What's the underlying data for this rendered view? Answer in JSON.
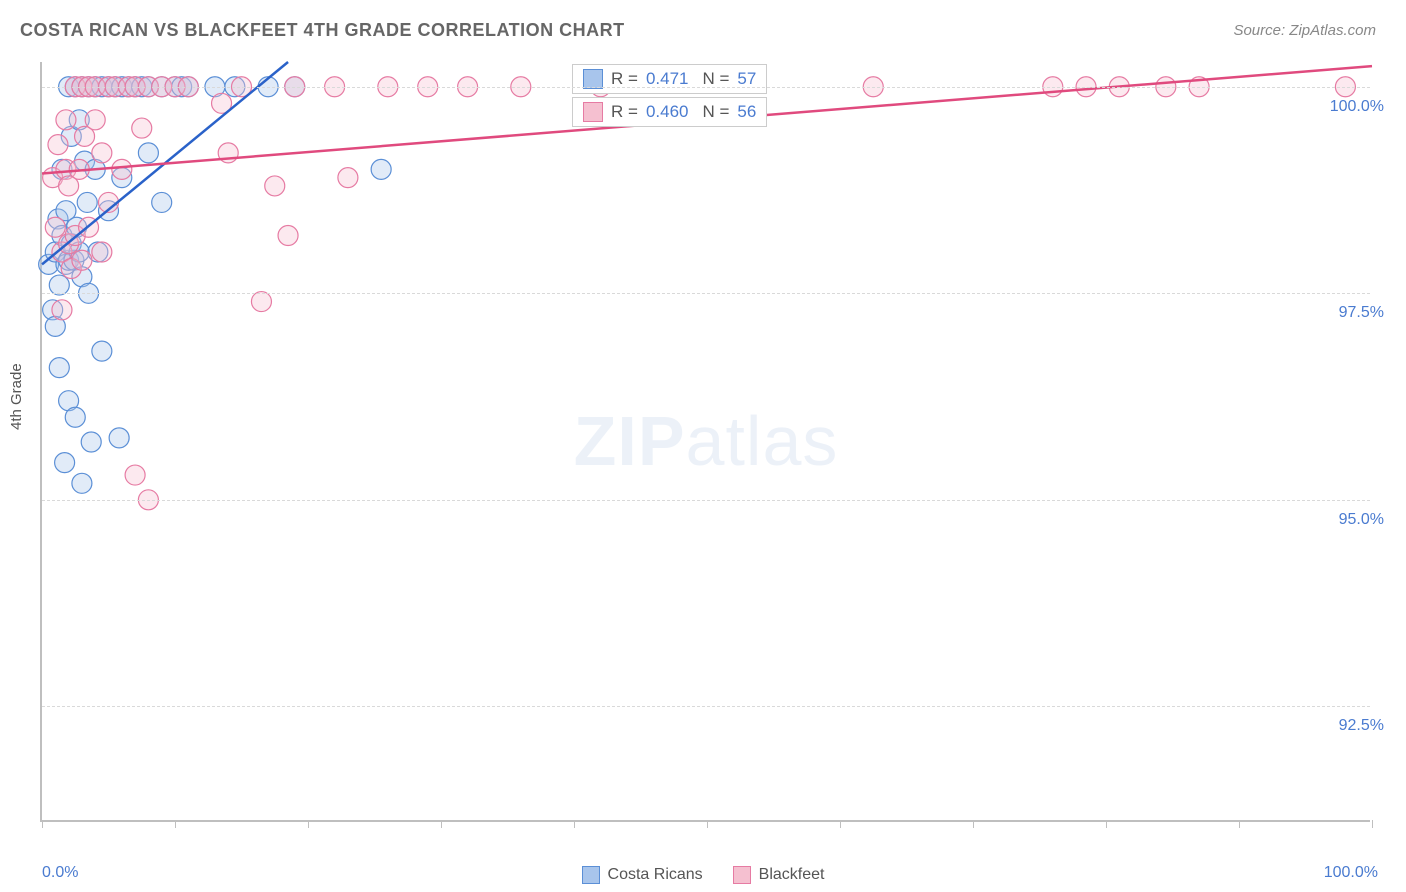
{
  "title": "COSTA RICAN VS BLACKFEET 4TH GRADE CORRELATION CHART",
  "source": "Source: ZipAtlas.com",
  "ylabel": "4th Grade",
  "watermark_zip": "ZIP",
  "watermark_atlas": "atlas",
  "chart": {
    "type": "scatter",
    "xlim": [
      0,
      100
    ],
    "ylim": [
      91.1,
      100.3
    ],
    "x_ticks": [
      0,
      10,
      20,
      30,
      40,
      50,
      60,
      70,
      80,
      90,
      100
    ],
    "x_tick_labels": {
      "0": "0.0%",
      "100": "100.0%"
    },
    "y_gridlines": [
      92.5,
      95.0,
      97.5,
      100.0
    ],
    "y_tick_labels": [
      "92.5%",
      "95.0%",
      "97.5%",
      "100.0%"
    ],
    "background_color": "#ffffff",
    "grid_color": "#d9d9d9",
    "axis_color": "#bfbfbf",
    "tick_label_color": "#4a7bd0",
    "marker_radius": 10,
    "marker_opacity": 0.35,
    "line_width": 2.5,
    "series": [
      {
        "name": "Costa Ricans",
        "fill_color": "#a8c5ec",
        "stroke_color": "#5b8fd6",
        "line_color": "#2a62c9",
        "R": "0.471",
        "N": "57",
        "trend": {
          "x1": 0,
          "y1": 97.85,
          "x2": 18.5,
          "y2": 100.3
        },
        "points": [
          [
            0.5,
            97.85
          ],
          [
            0.8,
            97.3
          ],
          [
            1.0,
            98.0
          ],
          [
            1.0,
            97.1
          ],
          [
            1.2,
            98.4
          ],
          [
            1.3,
            97.6
          ],
          [
            1.3,
            96.6
          ],
          [
            1.5,
            98.2
          ],
          [
            1.5,
            99.0
          ],
          [
            1.7,
            95.45
          ],
          [
            1.8,
            97.85
          ],
          [
            1.8,
            98.5
          ],
          [
            2.0,
            96.2
          ],
          [
            2.0,
            97.9
          ],
          [
            2.0,
            100.0
          ],
          [
            2.2,
            99.4
          ],
          [
            2.2,
            98.1
          ],
          [
            2.4,
            97.9
          ],
          [
            2.5,
            100.0
          ],
          [
            2.5,
            96.0
          ],
          [
            2.6,
            98.3
          ],
          [
            2.8,
            99.6
          ],
          [
            2.8,
            98.0
          ],
          [
            3.0,
            95.2
          ],
          [
            3.0,
            100.0
          ],
          [
            3.0,
            97.7
          ],
          [
            3.2,
            99.1
          ],
          [
            3.4,
            98.6
          ],
          [
            3.5,
            100.0
          ],
          [
            3.5,
            97.5
          ],
          [
            3.7,
            95.7
          ],
          [
            4.0,
            100.0
          ],
          [
            4.0,
            99.0
          ],
          [
            4.2,
            98.0
          ],
          [
            4.5,
            96.8
          ],
          [
            4.5,
            100.0
          ],
          [
            5.0,
            100.0
          ],
          [
            5.0,
            98.5
          ],
          [
            5.5,
            100.0
          ],
          [
            5.8,
            95.75
          ],
          [
            6.0,
            100.0
          ],
          [
            6.0,
            98.9
          ],
          [
            6.5,
            100.0
          ],
          [
            7.0,
            100.0
          ],
          [
            7.5,
            100.0
          ],
          [
            8.0,
            99.2
          ],
          [
            8.0,
            100.0
          ],
          [
            9.0,
            98.6
          ],
          [
            9.0,
            100.0
          ],
          [
            10.0,
            100.0
          ],
          [
            10.5,
            100.0
          ],
          [
            11.0,
            100.0
          ],
          [
            13.0,
            100.0
          ],
          [
            14.5,
            100.0
          ],
          [
            17.0,
            100.0
          ],
          [
            19.0,
            100.0
          ],
          [
            25.5,
            99.0
          ]
        ]
      },
      {
        "name": "Blackfeet",
        "fill_color": "#f5c0d0",
        "stroke_color": "#e67ba3",
        "line_color": "#e04a7e",
        "R": "0.460",
        "N": "56",
        "trend": {
          "x1": 0,
          "y1": 98.95,
          "x2": 100,
          "y2": 100.25
        },
        "points": [
          [
            0.8,
            98.9
          ],
          [
            1.0,
            98.3
          ],
          [
            1.2,
            99.3
          ],
          [
            1.5,
            98.0
          ],
          [
            1.5,
            97.3
          ],
          [
            1.8,
            99.0
          ],
          [
            1.8,
            99.6
          ],
          [
            2.0,
            98.1
          ],
          [
            2.0,
            98.8
          ],
          [
            2.2,
            97.8
          ],
          [
            2.5,
            100.0
          ],
          [
            2.5,
            98.2
          ],
          [
            2.8,
            99.0
          ],
          [
            3.0,
            100.0
          ],
          [
            3.0,
            97.9
          ],
          [
            3.2,
            99.4
          ],
          [
            3.5,
            98.3
          ],
          [
            3.5,
            100.0
          ],
          [
            4.0,
            99.6
          ],
          [
            4.0,
            100.0
          ],
          [
            4.5,
            98.0
          ],
          [
            4.5,
            99.2
          ],
          [
            5.0,
            100.0
          ],
          [
            5.0,
            98.6
          ],
          [
            5.5,
            100.0
          ],
          [
            6.0,
            99.0
          ],
          [
            6.5,
            100.0
          ],
          [
            7.0,
            95.3
          ],
          [
            7.0,
            100.0
          ],
          [
            7.5,
            99.5
          ],
          [
            8.0,
            95.0
          ],
          [
            8.0,
            100.0
          ],
          [
            9.0,
            100.0
          ],
          [
            10.0,
            100.0
          ],
          [
            11.0,
            100.0
          ],
          [
            13.5,
            99.8
          ],
          [
            14.0,
            99.2
          ],
          [
            15.0,
            100.0
          ],
          [
            16.5,
            97.4
          ],
          [
            17.5,
            98.8
          ],
          [
            18.5,
            98.2
          ],
          [
            19.0,
            100.0
          ],
          [
            22.0,
            100.0
          ],
          [
            23.0,
            98.9
          ],
          [
            26.0,
            100.0
          ],
          [
            29.0,
            100.0
          ],
          [
            32.0,
            100.0
          ],
          [
            36.0,
            100.0
          ],
          [
            42.0,
            100.0
          ],
          [
            62.5,
            100.0
          ],
          [
            76.0,
            100.0
          ],
          [
            78.5,
            100.0
          ],
          [
            81.0,
            100.0
          ],
          [
            84.5,
            100.0
          ],
          [
            87.0,
            100.0
          ],
          [
            98.0,
            100.0
          ]
        ]
      }
    ]
  },
  "stats_box": {
    "r_label": "R =",
    "n_label": "N ="
  },
  "legend": {
    "series1": "Costa Ricans",
    "series2": "Blackfeet"
  }
}
